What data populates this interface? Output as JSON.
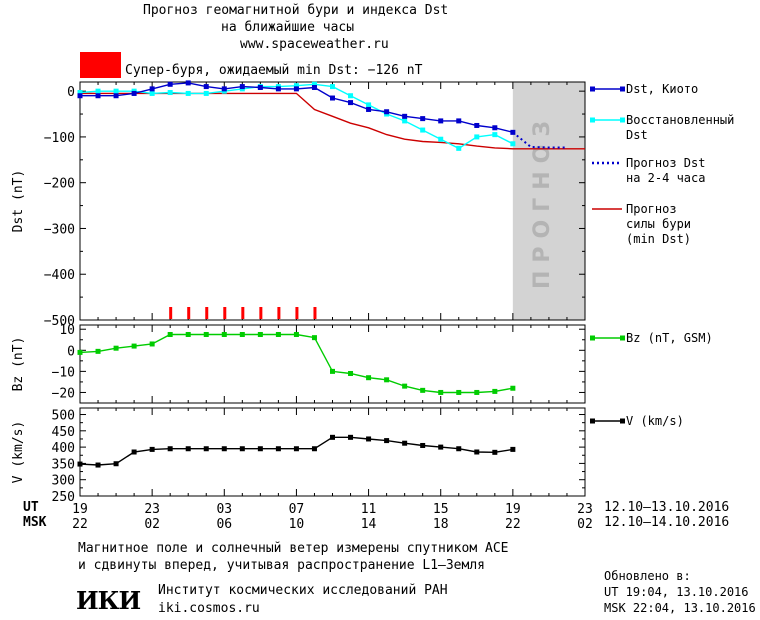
{
  "header": {
    "title_line1": "Прогноз геомагнитной бури и индекса Dst",
    "title_line2": "на ближайшие часы",
    "url": "www.spaceweather.ru",
    "storm_label": "Супер-буря, ожидаемый min Dst: −126 nT",
    "storm_color": "#ff0000"
  },
  "chart_data": [
    {
      "id": "dst",
      "type": "line",
      "ylabel": "Dst (nT)",
      "ylim": [
        -500,
        20
      ],
      "yticks": [
        0,
        -100,
        -200,
        -300,
        -400,
        -500
      ],
      "x_unit": "hours since 19:00 UT 12.10.2016",
      "xlim": [
        0,
        28
      ],
      "forecast_region_label": "ПРОГНОЗ",
      "forecast_region_x": [
        24,
        28
      ],
      "storm_markers_x": [
        5,
        6,
        7,
        8,
        9,
        10,
        11,
        12,
        13
      ],
      "series": [
        {
          "name": "Dst, Киото",
          "color": "#0000cc",
          "marker": "square",
          "x": [
            0,
            1,
            2,
            3,
            4,
            5,
            6,
            7,
            8,
            9,
            10,
            11,
            12,
            13,
            14,
            15,
            16,
            17,
            18,
            19,
            20,
            21,
            22,
            23,
            24
          ],
          "y": [
            -10,
            -10,
            -10,
            -5,
            5,
            15,
            18,
            10,
            5,
            10,
            8,
            5,
            5,
            8,
            -15,
            -25,
            -40,
            -45,
            -55,
            -60,
            -65,
            -65,
            -75,
            -80,
            -90
          ]
        },
        {
          "name": "Восстановленный Dst",
          "color": "#00ffff",
          "marker": "square",
          "x": [
            0,
            1,
            2,
            3,
            4,
            5,
            6,
            7,
            8,
            9,
            10,
            11,
            12,
            13,
            14,
            15,
            16,
            17,
            18,
            19,
            20,
            21,
            22,
            23,
            24
          ],
          "y": [
            -3,
            0,
            0,
            0,
            -5,
            -3,
            -5,
            -5,
            0,
            5,
            10,
            10,
            12,
            15,
            10,
            -10,
            -30,
            -50,
            -65,
            -85,
            -105,
            -125,
            -100,
            -95,
            -115
          ]
        },
        {
          "name": "Прогноз Dst на 2-4 часа",
          "color": "#0000cc",
          "style": "dotted",
          "x": [
            24,
            25,
            26,
            27
          ],
          "y": [
            -90,
            -122,
            -123,
            -123
          ]
        },
        {
          "name": "Прогноз силы бури (min Dst)",
          "color": "#cc0000",
          "x": [
            0,
            1,
            2,
            3,
            4,
            5,
            6,
            7,
            8,
            9,
            10,
            11,
            12,
            13,
            14,
            15,
            16,
            17,
            18,
            19,
            20,
            21,
            22,
            23,
            24,
            25,
            26,
            27,
            28
          ],
          "y": [
            -5,
            -5,
            -5,
            -5,
            -5,
            -5,
            -5,
            -5,
            -5,
            -5,
            -5,
            -5,
            -5,
            -40,
            -55,
            -70,
            -80,
            -95,
            -105,
            -110,
            -112,
            -115,
            -120,
            -124,
            -126,
            -126,
            -126,
            -126,
            -126
          ]
        }
      ]
    },
    {
      "id": "bz",
      "type": "line",
      "ylabel": "Bz (nT)",
      "ylim": [
        -25,
        12
      ],
      "yticks": [
        10,
        0,
        -10,
        -20
      ],
      "xlim": [
        0,
        28
      ],
      "series": [
        {
          "name": "Bz (nT, GSM)",
          "color": "#00cc00",
          "marker": "square",
          "x": [
            0,
            1,
            2,
            3,
            4,
            5,
            6,
            7,
            8,
            9,
            10,
            11,
            12,
            13,
            14,
            15,
            16,
            17,
            18,
            19,
            20,
            21,
            22,
            23,
            24
          ],
          "y": [
            -1,
            -0.5,
            1,
            2,
            3,
            7.5,
            7.5,
            7.5,
            7.5,
            7.5,
            7.5,
            7.5,
            7.5,
            6,
            -10,
            -11,
            -13,
            -14,
            -17,
            -19,
            -20,
            -20,
            -20,
            -19.5,
            -18
          ]
        }
      ]
    },
    {
      "id": "v",
      "type": "line",
      "ylabel": "V (km/s)",
      "ylim": [
        250,
        520
      ],
      "yticks": [
        500,
        450,
        400,
        350,
        300,
        250
      ],
      "xlim": [
        0,
        28
      ],
      "series": [
        {
          "name": "V (km/s)",
          "color": "#000000",
          "marker": "square",
          "x": [
            0,
            1,
            2,
            3,
            4,
            5,
            6,
            7,
            8,
            9,
            10,
            11,
            12,
            13,
            14,
            15,
            16,
            17,
            18,
            19,
            20,
            21,
            22,
            23,
            24
          ],
          "y": [
            348,
            345,
            349,
            385,
            393,
            395,
            395,
            395,
            395,
            395,
            395,
            395,
            395,
            395,
            430,
            430,
            425,
            420,
            412,
            405,
            400,
            395,
            385,
            384,
            393
          ]
        }
      ]
    }
  ],
  "x_axis": {
    "ut_label": "UT",
    "msk_label": "MSK",
    "ut_ticks": [
      "19",
      "23",
      "03",
      "07",
      "11",
      "15",
      "19",
      "23"
    ],
    "msk_ticks": [
      "22",
      "02",
      "06",
      "10",
      "14",
      "18",
      "22",
      "02"
    ],
    "ut_range": "12.10–13.10.2016",
    "msk_range": "12.10–14.10.2016"
  },
  "footer": {
    "note_line1": "Магнитное поле и солнечный ветер измерены спутником ACE",
    "note_line2": "и сдвинуты вперед, учитывая распространение L1–Земля",
    "logo": "ИКИ",
    "institute": "Институт космических исследований РАН",
    "institute_url": "iki.cosmos.ru",
    "updated_label": "Обновлено в:",
    "updated_ut": "UT  19:04, 13.10.2016",
    "updated_msk": "MSK 22:04, 13.10.2016"
  },
  "colors": {
    "forecast_band": "#d3d3d3",
    "forecast_text": "#b4b4b4"
  }
}
